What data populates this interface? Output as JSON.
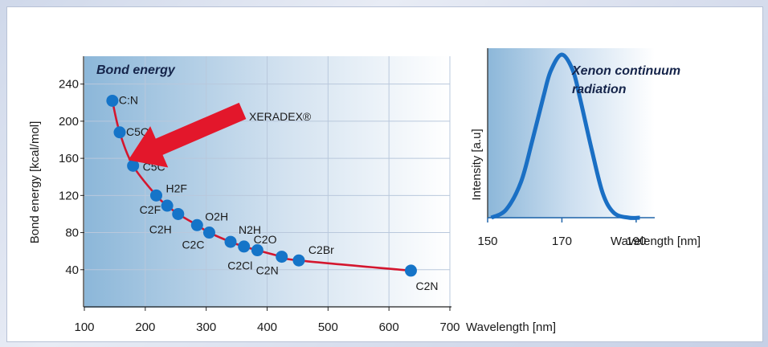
{
  "chart_data": [
    {
      "type": "scatter",
      "title": "Bond energy",
      "xlabel": "Wavelength [nm]",
      "ylabel": "Bond energy [kcal/mol]",
      "xlim": [
        100,
        700
      ],
      "ylim": [
        0,
        270
      ],
      "x_ticks": [
        "100",
        "200",
        "300",
        "400",
        "500",
        "600",
        "700"
      ],
      "y_ticks": [
        "40",
        "80",
        "120",
        "160",
        "200",
        "240"
      ],
      "grid": true,
      "points": [
        {
          "label": "C:N",
          "x": 146,
          "y": 222
        },
        {
          "label": "C5O",
          "x": 158,
          "y": 188
        },
        {
          "label": "C5C",
          "x": 180,
          "y": 152
        },
        {
          "label": "H2F",
          "x": 218,
          "y": 120
        },
        {
          "label": "C2F",
          "x": 236,
          "y": 109
        },
        {
          "label": "C2H",
          "x": 254,
          "y": 100
        },
        {
          "label": "O2H",
          "x": 285,
          "y": 88
        },
        {
          "label": "C2C",
          "x": 305,
          "y": 80
        },
        {
          "label": "N2H",
          "x": 340,
          "y": 70
        },
        {
          "label": "C2O",
          "x": 362,
          "y": 65
        },
        {
          "label": "C2Cl",
          "x": 384,
          "y": 61
        },
        {
          "label": "C2N",
          "x": 424,
          "y": 54
        },
        {
          "label": "C2Br",
          "x": 452,
          "y": 50
        },
        {
          "label": "C2N",
          "x": 636,
          "y": 39
        }
      ],
      "annotation": "XERADEX®",
      "annotation_points_to_x": 172
    },
    {
      "type": "line",
      "title": "Xenon continuum radiation",
      "xlabel": "Wavelength [nm]",
      "ylabel": "Intensity [a.u]",
      "xlim": [
        150,
        195
      ],
      "x_ticks": [
        "150",
        "170",
        "190"
      ],
      "peak_x": 170,
      "x": [
        151,
        155,
        159,
        162,
        165,
        167,
        170,
        173,
        175,
        178,
        181,
        184,
        188,
        191
      ],
      "y": [
        0.0,
        0.05,
        0.22,
        0.47,
        0.74,
        0.9,
        1.0,
        0.9,
        0.72,
        0.42,
        0.15,
        0.03,
        0.0,
        0.0
      ]
    }
  ],
  "colors": {
    "dot": "#1574c8",
    "curve": "#d4162e",
    "arrow": "#e3172b",
    "spectrum": "#1a6fc4",
    "plot_bg_dark": "#8cb7d9",
    "grid": "#b9c8dc"
  }
}
